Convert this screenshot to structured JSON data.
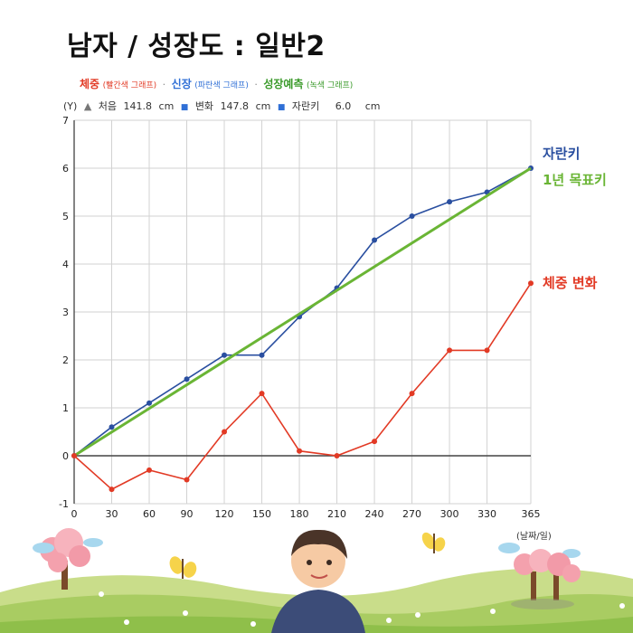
{
  "title": "남자 / 성장도 : 일반2",
  "legend": {
    "weight_label": "체중",
    "weight_note": "(빨간색 그래프)",
    "height_label": "신장",
    "height_note": "(파란색 그래프)",
    "forecast_label": "성장예측",
    "forecast_note": "(녹색 그래프)",
    "separator": "·"
  },
  "info": {
    "axis_unit": "(Y)",
    "start_label": "처음",
    "start_value": "141.8",
    "start_unit": "cm",
    "change_label": "변화",
    "change_value": "147.8",
    "change_unit": "cm",
    "grow_label": "자란키",
    "grow_value": "6.0",
    "grow_unit": "cm"
  },
  "x_unit_label": "(날짜/일)",
  "colors": {
    "height": "#2a4fa0",
    "weight": "#e23a25",
    "forecast": "#6ab535",
    "grid": "#d2d2d2"
  },
  "chart_data": {
    "type": "line",
    "x": [
      0,
      30,
      60,
      90,
      120,
      150,
      180,
      210,
      240,
      270,
      300,
      330,
      365
    ],
    "xlim": [
      0,
      365
    ],
    "ylim": [
      -1,
      7
    ],
    "yticks": [
      -1,
      0,
      1,
      2,
      3,
      4,
      5,
      6,
      7
    ],
    "grid": true,
    "series": [
      {
        "name": "자란키",
        "color": "#2a4fa0",
        "values": [
          0,
          0.6,
          1.1,
          1.6,
          2.1,
          2.1,
          2.9,
          3.5,
          4.5,
          5.0,
          5.3,
          5.5,
          6.0
        ]
      },
      {
        "name": "1년 목표키",
        "color": "#6ab535",
        "points": [
          [
            0,
            0
          ],
          [
            365,
            6.0
          ]
        ]
      },
      {
        "name": "체중 변화",
        "color": "#e23a25",
        "values": [
          0,
          -0.7,
          -0.3,
          -0.5,
          0.5,
          1.3,
          0.1,
          0,
          0.3,
          1.3,
          2.2,
          2.2,
          3.6
        ]
      }
    ]
  }
}
